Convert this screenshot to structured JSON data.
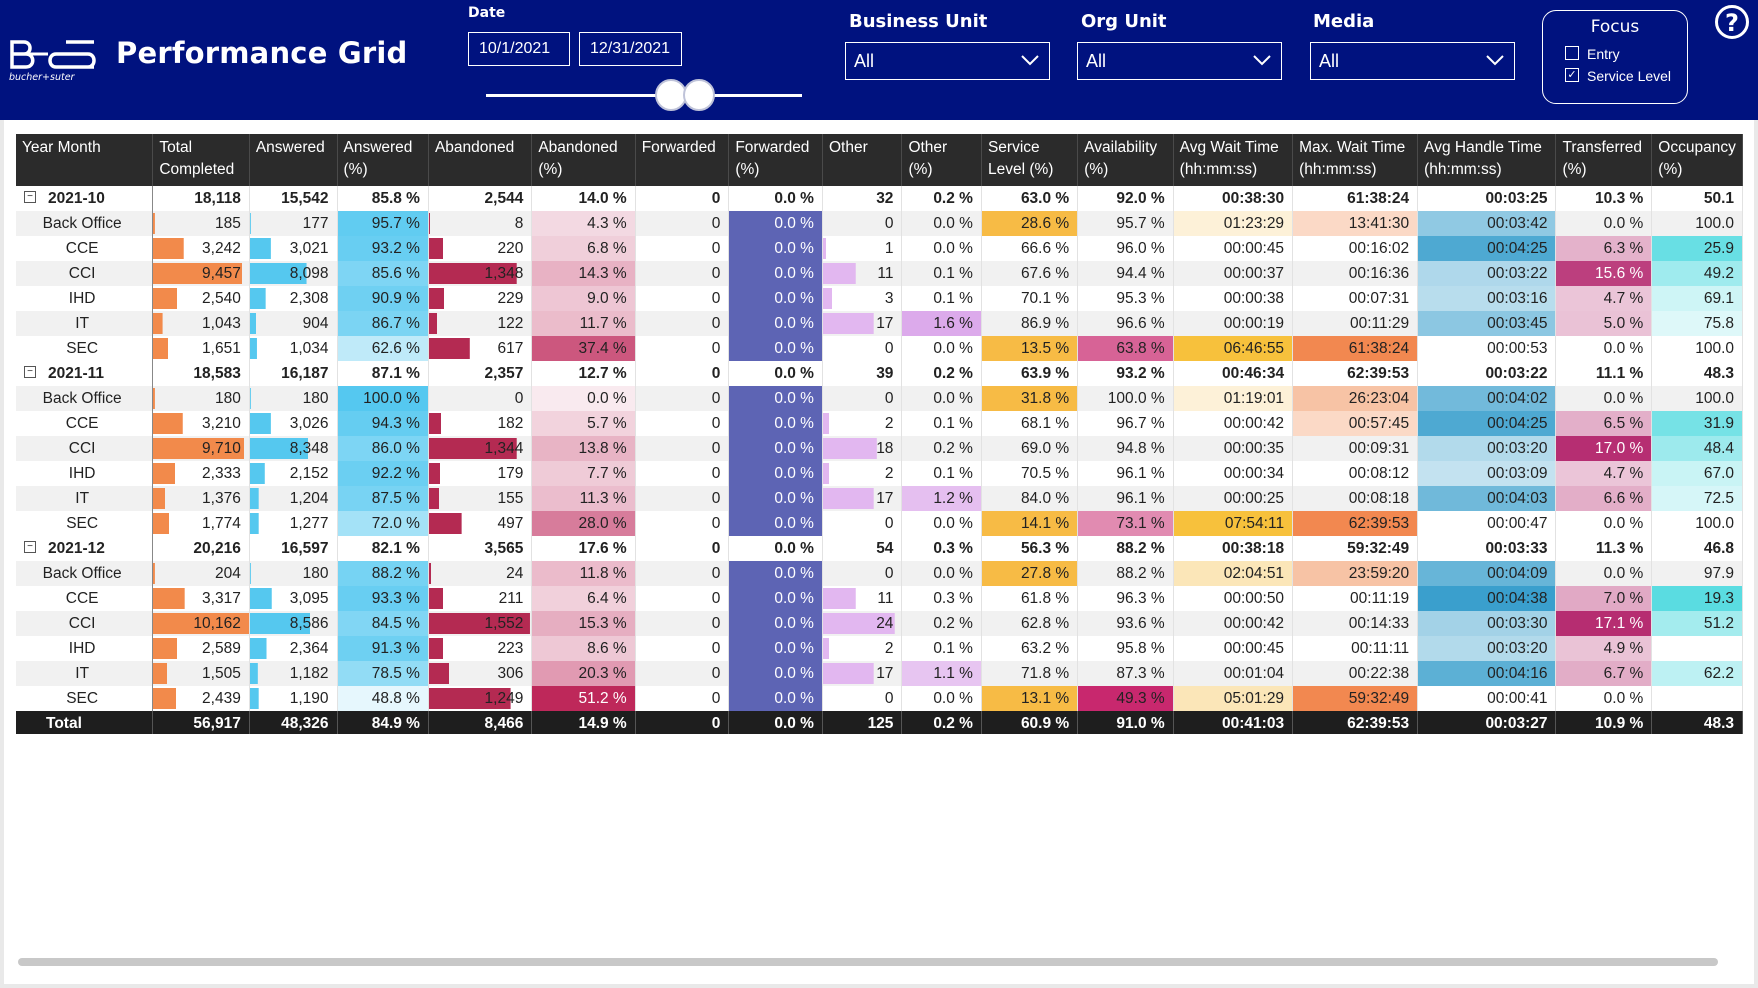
{
  "app": {
    "title": "Performance Grid",
    "logo_text": "bucher+suter"
  },
  "filters": {
    "date_label": "Date",
    "date_from": "10/1/2021",
    "date_to": "12/31/2021",
    "business_unit": {
      "label": "Business Unit",
      "value": "All"
    },
    "org_unit": {
      "label": "Org Unit",
      "value": "All"
    },
    "media": {
      "label": "Media",
      "value": "All"
    },
    "focus": {
      "title": "Focus",
      "options": [
        {
          "label": "Entry",
          "checked": false
        },
        {
          "label": "Service Level",
          "checked": true
        }
      ]
    },
    "help_icon": "?"
  },
  "colors": {
    "header_bg": "#00127f",
    "total_completed_bar": "#f28a4b",
    "answered_bar": "#55c8ef",
    "abandoned_bar": "#b42a52",
    "forwarded_pct_fill": "#5d64b4",
    "other_bar": "#e2b7f0"
  },
  "grid": {
    "columns": [
      "Year Month",
      "Total Completed",
      "Answered",
      "Answered (%)",
      "Abandoned",
      "Abandoned (%)",
      "Forwarded",
      "Forwarded (%)",
      "Other",
      "Other (%)",
      "Service Level (%)",
      "Availability (%)",
      "Avg Wait Time (hh:mm:ss)",
      "Max. Wait Time (hh:mm:ss)",
      "Avg Handle Time (hh:mm:ss)",
      "Transferred (%)",
      "Occupancy (%)"
    ],
    "groups": [
      {
        "month": "2021-10",
        "summary": [
          "18,118",
          "15,542",
          "85.8 %",
          "2,544",
          "14.0 %",
          "0",
          "0.0 %",
          "32",
          "0.2 %",
          "63.0 %",
          "92.0 %",
          "00:38:30",
          "61:38:24",
          "00:03:25",
          "10.3 %",
          "50.1"
        ],
        "rows": [
          {
            "name": "Back Office",
            "v": [
              "185",
              "177",
              "95.7 %",
              "8",
              "4.3 %",
              "0",
              "0.0 %",
              "0",
              "0.0 %",
              "28.6 %",
              "95.7 %",
              "01:23:29",
              "13:41:30",
              "00:03:42",
              "0.0 %",
              "100.0"
            ]
          },
          {
            "name": "CCE",
            "v": [
              "3,242",
              "3,021",
              "93.2 %",
              "220",
              "6.8 %",
              "0",
              "0.0 %",
              "1",
              "0.0 %",
              "66.6 %",
              "96.0 %",
              "00:00:45",
              "00:16:02",
              "00:04:25",
              "6.3 %",
              "25.9"
            ]
          },
          {
            "name": "CCI",
            "v": [
              "9,457",
              "8,098",
              "85.6 %",
              "1,348",
              "14.3 %",
              "0",
              "0.0 %",
              "11",
              "0.1 %",
              "67.6 %",
              "94.4 %",
              "00:00:37",
              "00:16:36",
              "00:03:22",
              "15.6 %",
              "49.2"
            ]
          },
          {
            "name": "IHD",
            "v": [
              "2,540",
              "2,308",
              "90.9 %",
              "229",
              "9.0 %",
              "0",
              "0.0 %",
              "3",
              "0.1 %",
              "70.1 %",
              "95.3 %",
              "00:00:38",
              "00:07:31",
              "00:03:16",
              "4.7 %",
              "69.1"
            ]
          },
          {
            "name": "IT",
            "v": [
              "1,043",
              "904",
              "86.7 %",
              "122",
              "11.7 %",
              "0",
              "0.0 %",
              "17",
              "1.6 %",
              "86.9 %",
              "96.6 %",
              "00:00:19",
              "00:11:29",
              "00:03:45",
              "5.0 %",
              "75.8"
            ]
          },
          {
            "name": "SEC",
            "v": [
              "1,651",
              "1,034",
              "62.6 %",
              "617",
              "37.4 %",
              "0",
              "0.0 %",
              "0",
              "0.0 %",
              "13.5 %",
              "63.8 %",
              "06:46:55",
              "61:38:24",
              "00:00:53",
              "0.0 %",
              "100.0"
            ]
          }
        ]
      },
      {
        "month": "2021-11",
        "summary": [
          "18,583",
          "16,187",
          "87.1 %",
          "2,357",
          "12.7 %",
          "0",
          "0.0 %",
          "39",
          "0.2 %",
          "63.9 %",
          "93.2 %",
          "00:46:34",
          "62:39:53",
          "00:03:22",
          "11.1 %",
          "48.3"
        ],
        "rows": [
          {
            "name": "Back Office",
            "v": [
              "180",
              "180",
              "100.0 %",
              "0",
              "0.0 %",
              "0",
              "0.0 %",
              "0",
              "0.0 %",
              "31.8 %",
              "100.0 %",
              "01:19:01",
              "26:23:04",
              "00:04:02",
              "0.0 %",
              "100.0"
            ]
          },
          {
            "name": "CCE",
            "v": [
              "3,210",
              "3,026",
              "94.3 %",
              "182",
              "5.7 %",
              "0",
              "0.0 %",
              "2",
              "0.1 %",
              "68.1 %",
              "96.7 %",
              "00:00:42",
              "00:57:45",
              "00:04:25",
              "6.5 %",
              "31.9"
            ]
          },
          {
            "name": "CCI",
            "v": [
              "9,710",
              "8,348",
              "86.0 %",
              "1,344",
              "13.8 %",
              "0",
              "0.0 %",
              "18",
              "0.2 %",
              "69.0 %",
              "94.8 %",
              "00:00:35",
              "00:09:31",
              "00:03:20",
              "17.0 %",
              "48.4"
            ]
          },
          {
            "name": "IHD",
            "v": [
              "2,333",
              "2,152",
              "92.2 %",
              "179",
              "7.7 %",
              "0",
              "0.0 %",
              "2",
              "0.1 %",
              "70.5 %",
              "96.1 %",
              "00:00:34",
              "00:08:12",
              "00:03:09",
              "4.7 %",
              "67.0"
            ]
          },
          {
            "name": "IT",
            "v": [
              "1,376",
              "1,204",
              "87.5 %",
              "155",
              "11.3 %",
              "0",
              "0.0 %",
              "17",
              "1.2 %",
              "84.0 %",
              "96.1 %",
              "00:00:25",
              "00:08:18",
              "00:04:03",
              "6.6 %",
              "72.5"
            ]
          },
          {
            "name": "SEC",
            "v": [
              "1,774",
              "1,277",
              "72.0 %",
              "497",
              "28.0 %",
              "0",
              "0.0 %",
              "0",
              "0.0 %",
              "14.1 %",
              "73.1 %",
              "07:54:11",
              "62:39:53",
              "00:00:47",
              "0.0 %",
              "100.0"
            ]
          }
        ]
      },
      {
        "month": "2021-12",
        "summary": [
          "20,216",
          "16,597",
          "82.1 %",
          "3,565",
          "17.6 %",
          "0",
          "0.0 %",
          "54",
          "0.3 %",
          "56.3 %",
          "88.2 %",
          "00:38:18",
          "59:32:49",
          "00:03:33",
          "11.3 %",
          "46.8"
        ],
        "rows": [
          {
            "name": "Back Office",
            "v": [
              "204",
              "180",
              "88.2 %",
              "24",
              "11.8 %",
              "0",
              "0.0 %",
              "0",
              "0.0 %",
              "27.8 %",
              "88.2 %",
              "02:04:51",
              "23:59:20",
              "00:04:09",
              "0.0 %",
              "97.9"
            ]
          },
          {
            "name": "CCE",
            "v": [
              "3,317",
              "3,095",
              "93.3 %",
              "211",
              "6.4 %",
              "0",
              "0.0 %",
              "11",
              "0.3 %",
              "61.8 %",
              "96.3 %",
              "00:00:50",
              "00:11:19",
              "00:04:38",
              "7.0 %",
              "19.3"
            ]
          },
          {
            "name": "CCI",
            "v": [
              "10,162",
              "8,586",
              "84.5 %",
              "1,552",
              "15.3 %",
              "0",
              "0.0 %",
              "24",
              "0.2 %",
              "62.8 %",
              "93.6 %",
              "00:00:42",
              "00:14:33",
              "00:03:30",
              "17.1 %",
              "51.2"
            ]
          },
          {
            "name": "IHD",
            "v": [
              "2,589",
              "2,364",
              "91.3 %",
              "223",
              "8.6 %",
              "0",
              "0.0 %",
              "2",
              "0.1 %",
              "63.2 %",
              "95.8 %",
              "00:00:45",
              "00:11:11",
              "00:03:20",
              "4.9 %",
              ""
            ]
          },
          {
            "name": "IT",
            "v": [
              "1,505",
              "1,182",
              "78.5 %",
              "306",
              "20.3 %",
              "0",
              "0.0 %",
              "17",
              "1.1 %",
              "71.8 %",
              "87.3 %",
              "00:01:04",
              "00:22:38",
              "00:04:16",
              "6.7 %",
              "62.2"
            ]
          },
          {
            "name": "SEC",
            "v": [
              "2,439",
              "1,190",
              "48.8 %",
              "1,249",
              "51.2 %",
              "0",
              "0.0 %",
              "0",
              "0.0 %",
              "13.1 %",
              "49.3 %",
              "05:01:29",
              "59:32:49",
              "00:00:41",
              "0.0 %",
              ""
            ]
          }
        ]
      }
    ],
    "total": {
      "label": "Total",
      "v": [
        "56,917",
        "48,326",
        "84.9 %",
        "8,466",
        "14.9 %",
        "0",
        "0.0 %",
        "125",
        "0.2 %",
        "60.9 %",
        "91.0 %",
        "00:41:03",
        "62:39:53",
        "00:03:27",
        "10.9 %",
        "48.3"
      ]
    }
  }
}
